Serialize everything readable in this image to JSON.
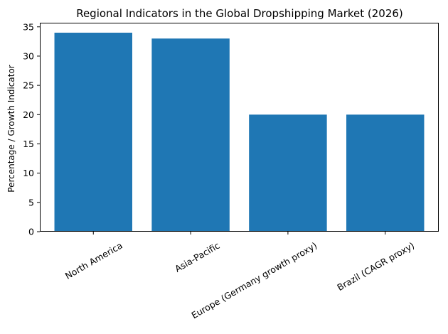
{
  "chart_data": {
    "type": "bar",
    "title": "Regional Indicators in the Global Dropshipping Market (2026)",
    "xlabel": "",
    "ylabel": "Percentage / Growth Indicator",
    "categories": [
      "North America",
      "Asia-Pacific",
      "Europe (Germany growth proxy)",
      "Brazil (CAGR proxy)"
    ],
    "values": [
      34,
      33,
      20,
      20
    ],
    "ylim": [
      0,
      35.7
    ],
    "yticks": [
      0,
      5,
      10,
      15,
      20,
      25,
      30,
      35
    ],
    "grid": false,
    "x_tick_rotation": 30,
    "bar_color": "#1f77b4"
  }
}
